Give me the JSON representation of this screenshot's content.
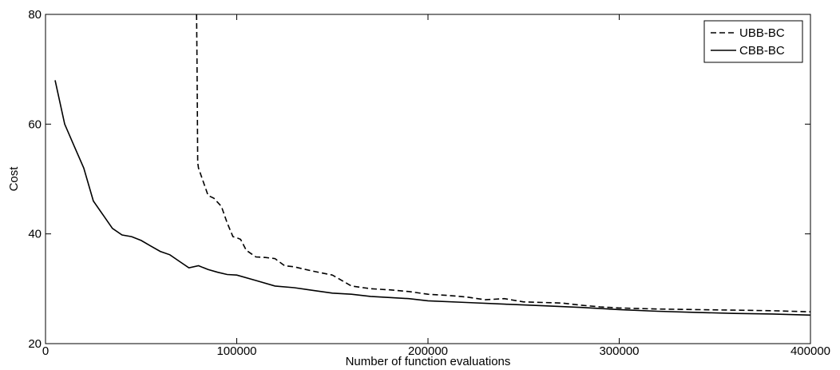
{
  "chart_data": {
    "type": "line",
    "xlabel": "Number of function evaluations",
    "ylabel": "Cost",
    "xlim": [
      0,
      400000
    ],
    "ylim": [
      20,
      80
    ],
    "xticks": [
      0,
      100000,
      200000,
      300000,
      400000
    ],
    "xtick_labels": [
      "0",
      "100000",
      "200000",
      "300000",
      "400000"
    ],
    "yticks": [
      20,
      40,
      60,
      80
    ],
    "ytick_labels": [
      "20",
      "40",
      "60",
      "80"
    ],
    "grid": false,
    "legend_position": "top-right",
    "series": [
      {
        "name": "UBB-BC",
        "style": "dashed",
        "color": "#000000",
        "x": [
          79000,
          79200,
          79400,
          79600,
          80000,
          82000,
          85000,
          88000,
          92000,
          95000,
          98000,
          100000,
          102000,
          105000,
          110000,
          115000,
          120000,
          125000,
          130000,
          140000,
          150000,
          160000,
          170000,
          180000,
          190000,
          200000,
          210000,
          220000,
          230000,
          240000,
          250000,
          260000,
          270000,
          280000,
          290000,
          300000,
          320000,
          340000,
          360000,
          380000,
          400000
        ],
        "y": [
          80,
          72,
          62,
          53,
          52,
          50,
          47,
          46.5,
          45,
          42,
          39.5,
          39.3,
          39,
          37,
          35.8,
          35.7,
          35.5,
          34.2,
          34,
          33.2,
          32.5,
          30.5,
          30,
          29.8,
          29.5,
          29,
          28.8,
          28.5,
          28,
          28.2,
          27.6,
          27.5,
          27.4,
          27,
          26.7,
          26.5,
          26.3,
          26.2,
          26.1,
          26.0,
          25.8
        ]
      },
      {
        "name": "CBB-BC",
        "style": "solid",
        "color": "#000000",
        "x": [
          5000,
          10000,
          15000,
          20000,
          25000,
          30000,
          35000,
          40000,
          45000,
          50000,
          55000,
          60000,
          65000,
          70000,
          75000,
          80000,
          85000,
          90000,
          95000,
          100000,
          110000,
          120000,
          130000,
          140000,
          150000,
          160000,
          170000,
          180000,
          190000,
          200000,
          220000,
          240000,
          260000,
          280000,
          300000,
          320000,
          340000,
          360000,
          380000,
          400000
        ],
        "y": [
          68,
          60,
          56,
          52,
          46,
          43.5,
          41,
          39.8,
          39.5,
          38.8,
          37.8,
          36.8,
          36.2,
          35,
          33.8,
          34.2,
          33.5,
          33,
          32.6,
          32.5,
          31.5,
          30.5,
          30.2,
          29.7,
          29.2,
          29,
          28.6,
          28.4,
          28.2,
          27.8,
          27.5,
          27.2,
          26.9,
          26.6,
          26.2,
          25.9,
          25.7,
          25.5,
          25.4,
          25.2
        ]
      }
    ]
  }
}
